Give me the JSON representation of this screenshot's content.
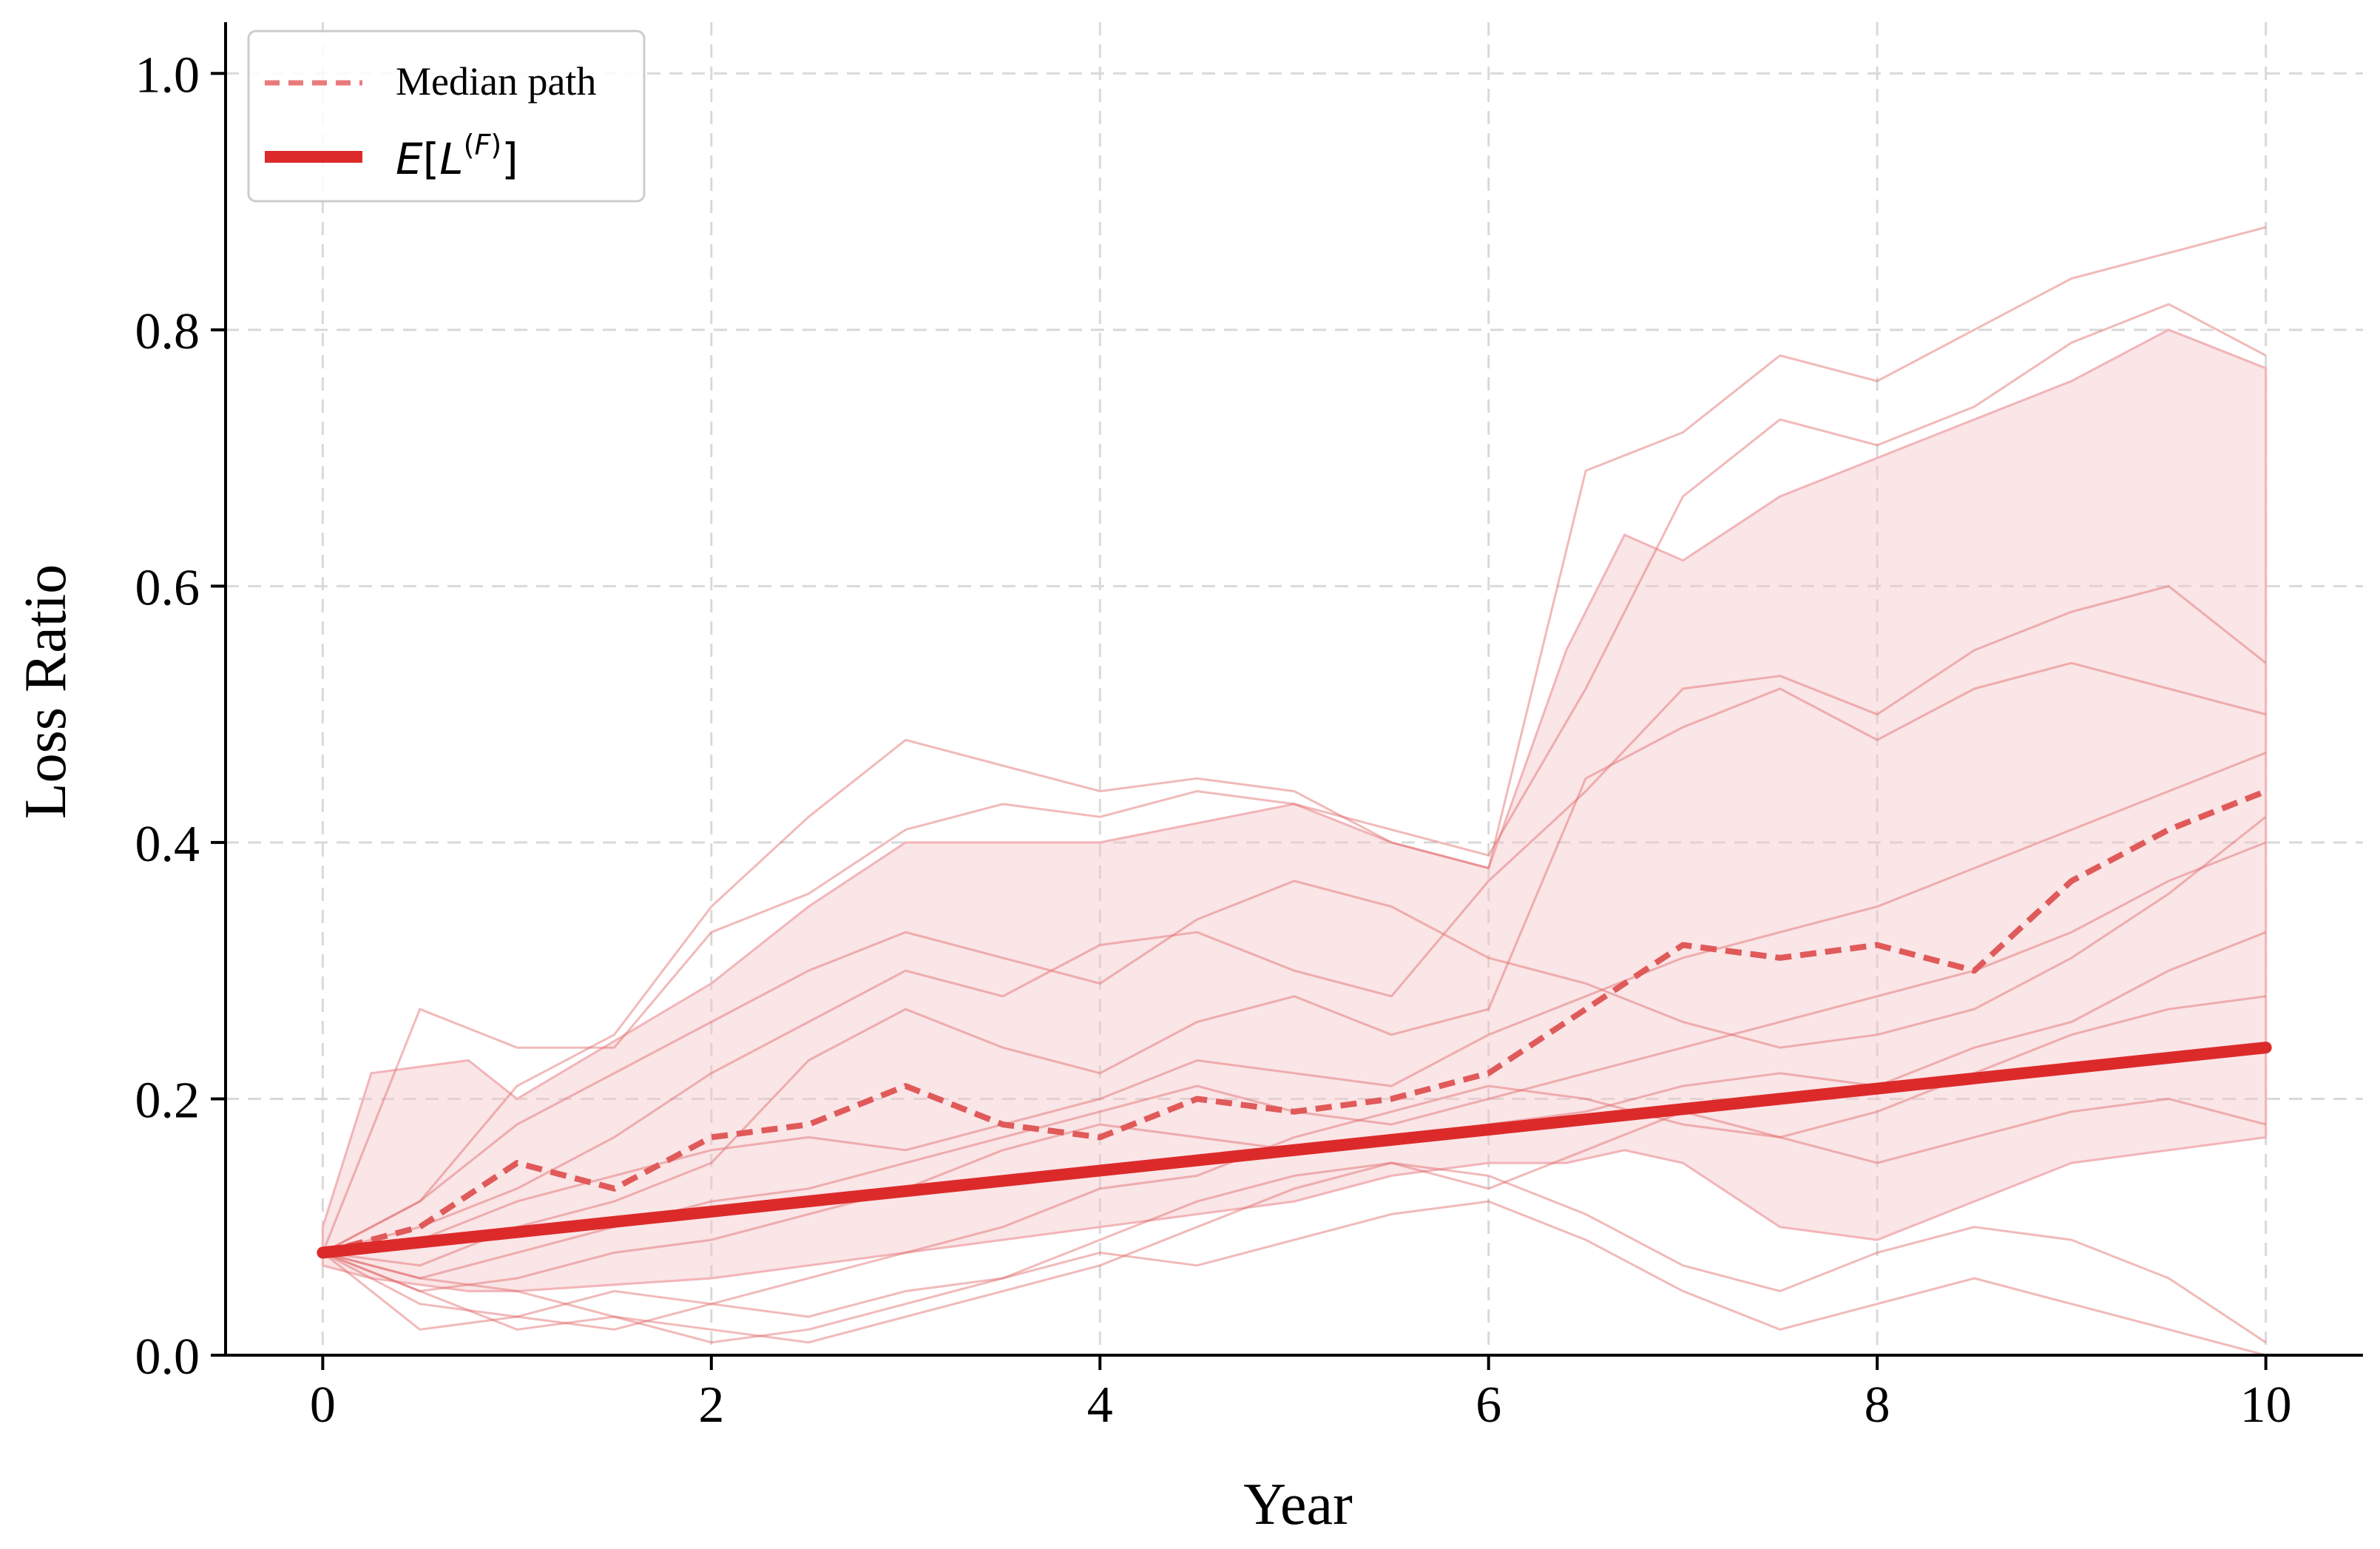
{
  "chart_data": {
    "type": "line",
    "title": "",
    "xlabel": "Year",
    "ylabel": "Loss Ratio",
    "xlim": [
      -0.5,
      10.5
    ],
    "ylim": [
      0.0,
      1.04
    ],
    "x_ticks": [
      "0",
      "2",
      "4",
      "6",
      "8",
      "10"
    ],
    "y_ticks": [
      "0.0",
      "0.2",
      "0.4",
      "0.6",
      "0.8",
      "1.0"
    ],
    "grid": true,
    "legend_position": "top-left",
    "legend": [
      {
        "label": "Median path",
        "style": "dashed",
        "color": "#e87a7a"
      },
      {
        "label": "E[L^(F)]",
        "style": "solid-thick",
        "color": "#dc2a2a"
      }
    ],
    "expected_line": {
      "x": [
        0,
        10
      ],
      "y": [
        0.08,
        0.24
      ]
    },
    "median_path": {
      "x": [
        0,
        0.5,
        1,
        1.5,
        2,
        2.5,
        3,
        3.5,
        4,
        4.5,
        5,
        5.5,
        6,
        6.5,
        7,
        7.5,
        8,
        8.5,
        9,
        9.5,
        10
      ],
      "y": [
        0.08,
        0.1,
        0.15,
        0.13,
        0.17,
        0.18,
        0.21,
        0.18,
        0.17,
        0.2,
        0.19,
        0.2,
        0.22,
        0.27,
        0.32,
        0.31,
        0.32,
        0.3,
        0.37,
        0.41,
        0.44
      ]
    },
    "band": {
      "x": [
        0,
        0.25,
        0.75,
        1,
        2,
        2.5,
        3,
        4,
        5,
        5.5,
        6,
        6.4,
        6.7,
        7,
        7.5,
        8,
        8.5,
        9,
        9.5,
        10
      ],
      "upper": [
        0.1,
        0.22,
        0.23,
        0.2,
        0.29,
        0.35,
        0.4,
        0.4,
        0.43,
        0.4,
        0.38,
        0.55,
        0.64,
        0.62,
        0.67,
        0.7,
        0.73,
        0.76,
        0.8,
        0.77
      ],
      "lower": [
        0.07,
        0.06,
        0.05,
        0.05,
        0.06,
        0.07,
        0.08,
        0.1,
        0.12,
        0.14,
        0.15,
        0.15,
        0.16,
        0.15,
        0.1,
        0.09,
        0.12,
        0.15,
        0.16,
        0.17
      ]
    },
    "sample_paths": [
      {
        "x": [
          0,
          0.5,
          1,
          1.5,
          2,
          2.5,
          3,
          3.5,
          4,
          4.5,
          5,
          5.5,
          6,
          6.5,
          7,
          7.5,
          8,
          8.5,
          9,
          9.5,
          10
        ],
        "y": [
          0.08,
          0.12,
          0.21,
          0.25,
          0.35,
          0.42,
          0.48,
          0.46,
          0.44,
          0.45,
          0.44,
          0.4,
          0.38,
          0.69,
          0.72,
          0.78,
          0.76,
          0.8,
          0.84,
          0.86,
          0.88
        ]
      },
      {
        "x": [
          0,
          0.5,
          1,
          1.5,
          2,
          2.5,
          3,
          3.5,
          4,
          4.5,
          5,
          5.5,
          6,
          6.5,
          7,
          7.5,
          8,
          8.5,
          9,
          9.5,
          10
        ],
        "y": [
          0.08,
          0.27,
          0.24,
          0.24,
          0.33,
          0.36,
          0.41,
          0.43,
          0.42,
          0.44,
          0.43,
          0.41,
          0.39,
          0.52,
          0.67,
          0.73,
          0.71,
          0.74,
          0.79,
          0.82,
          0.78
        ]
      },
      {
        "x": [
          0,
          0.5,
          1,
          1.5,
          2,
          2.5,
          3,
          3.5,
          4,
          4.5,
          5,
          5.5,
          6,
          6.5,
          7,
          7.5,
          8,
          8.5,
          9,
          9.5,
          10
        ],
        "y": [
          0.08,
          0.1,
          0.13,
          0.17,
          0.22,
          0.26,
          0.3,
          0.28,
          0.32,
          0.33,
          0.3,
          0.28,
          0.37,
          0.44,
          0.52,
          0.53,
          0.5,
          0.55,
          0.58,
          0.6,
          0.54
        ]
      },
      {
        "x": [
          0,
          0.5,
          1,
          1.5,
          2,
          2.5,
          3,
          3.5,
          4,
          4.5,
          5,
          5.5,
          6,
          6.5,
          7,
          7.5,
          8,
          8.5,
          9,
          9.5,
          10
        ],
        "y": [
          0.08,
          0.07,
          0.1,
          0.12,
          0.15,
          0.23,
          0.27,
          0.24,
          0.22,
          0.26,
          0.28,
          0.25,
          0.27,
          0.45,
          0.49,
          0.52,
          0.48,
          0.52,
          0.54,
          0.52,
          0.5
        ]
      },
      {
        "x": [
          0,
          0.5,
          1,
          1.5,
          2,
          2.5,
          3,
          3.5,
          4,
          4.5,
          5,
          5.5,
          6,
          6.5,
          7,
          7.5,
          8,
          8.5,
          9,
          9.5,
          10
        ],
        "y": [
          0.08,
          0.09,
          0.12,
          0.14,
          0.16,
          0.17,
          0.16,
          0.18,
          0.2,
          0.23,
          0.22,
          0.21,
          0.25,
          0.28,
          0.31,
          0.33,
          0.35,
          0.38,
          0.41,
          0.44,
          0.47
        ]
      },
      {
        "x": [
          0,
          0.5,
          1,
          1.5,
          2,
          2.5,
          3,
          3.5,
          4,
          4.5,
          5,
          5.5,
          6,
          6.5,
          7,
          7.5,
          8,
          8.5,
          9,
          9.5,
          10
        ],
        "y": [
          0.08,
          0.06,
          0.08,
          0.1,
          0.12,
          0.13,
          0.15,
          0.17,
          0.19,
          0.21,
          0.19,
          0.18,
          0.2,
          0.22,
          0.24,
          0.26,
          0.28,
          0.3,
          0.33,
          0.37,
          0.4
        ]
      },
      {
        "x": [
          0,
          0.5,
          1,
          1.5,
          2,
          2.5,
          3,
          3.5,
          4,
          4.5,
          5,
          5.5,
          6,
          6.5,
          7,
          7.5,
          8,
          8.5,
          9,
          9.5,
          10
        ],
        "y": [
          0.08,
          0.05,
          0.06,
          0.08,
          0.09,
          0.11,
          0.13,
          0.16,
          0.18,
          0.17,
          0.16,
          0.17,
          0.18,
          0.19,
          0.21,
          0.22,
          0.21,
          0.24,
          0.26,
          0.3,
          0.33
        ]
      },
      {
        "x": [
          0,
          0.5,
          1,
          1.5,
          2,
          2.5,
          3,
          3.5,
          4,
          4.5,
          5,
          5.5,
          6,
          6.5,
          7,
          7.5,
          8,
          8.5,
          9,
          9.5,
          10
        ],
        "y": [
          0.08,
          0.04,
          0.03,
          0.05,
          0.04,
          0.06,
          0.08,
          0.1,
          0.13,
          0.14,
          0.17,
          0.19,
          0.21,
          0.2,
          0.18,
          0.17,
          0.19,
          0.22,
          0.25,
          0.27,
          0.28
        ]
      },
      {
        "x": [
          0,
          0.5,
          1,
          1.5,
          2,
          2.5,
          3,
          3.5,
          4,
          4.5,
          5,
          5.5,
          6,
          6.5,
          7,
          7.5,
          8,
          8.5,
          9,
          9.5,
          10
        ],
        "y": [
          0.08,
          0.02,
          0.03,
          0.02,
          0.04,
          0.03,
          0.05,
          0.06,
          0.09,
          0.12,
          0.14,
          0.15,
          0.13,
          0.16,
          0.19,
          0.17,
          0.15,
          0.17,
          0.19,
          0.2,
          0.18
        ]
      },
      {
        "x": [
          0,
          0.5,
          1,
          1.5,
          2,
          2.5,
          3,
          3.5,
          4,
          4.5,
          5,
          5.5,
          6,
          6.5,
          7,
          7.5,
          8,
          8.5,
          9,
          9.5,
          10
        ],
        "y": [
          0.08,
          0.05,
          0.02,
          0.03,
          0.02,
          0.01,
          0.03,
          0.05,
          0.07,
          0.1,
          0.13,
          0.15,
          0.14,
          0.11,
          0.07,
          0.05,
          0.08,
          0.1,
          0.09,
          0.06,
          0.01
        ]
      },
      {
        "x": [
          0,
          0.5,
          1,
          1.5,
          2,
          2.5,
          3,
          3.5,
          4,
          4.5,
          5,
          5.5,
          6,
          6.5,
          7,
          7.5,
          8,
          8.5,
          9,
          9.5,
          10
        ],
        "y": [
          0.08,
          0.06,
          0.05,
          0.03,
          0.01,
          0.02,
          0.04,
          0.06,
          0.08,
          0.07,
          0.09,
          0.11,
          0.12,
          0.09,
          0.05,
          0.02,
          0.04,
          0.06,
          0.04,
          0.02,
          0.0
        ]
      },
      {
        "x": [
          0,
          0.5,
          1,
          1.5,
          2,
          2.5,
          3,
          3.5,
          4,
          4.5,
          5,
          5.5,
          6,
          6.5,
          7,
          7.5,
          8,
          8.5,
          9,
          9.5,
          10
        ],
        "y": [
          0.08,
          0.12,
          0.18,
          0.22,
          0.26,
          0.3,
          0.33,
          0.31,
          0.29,
          0.34,
          0.37,
          0.35,
          0.31,
          0.29,
          0.26,
          0.24,
          0.25,
          0.27,
          0.31,
          0.36,
          0.42
        ]
      }
    ]
  }
}
